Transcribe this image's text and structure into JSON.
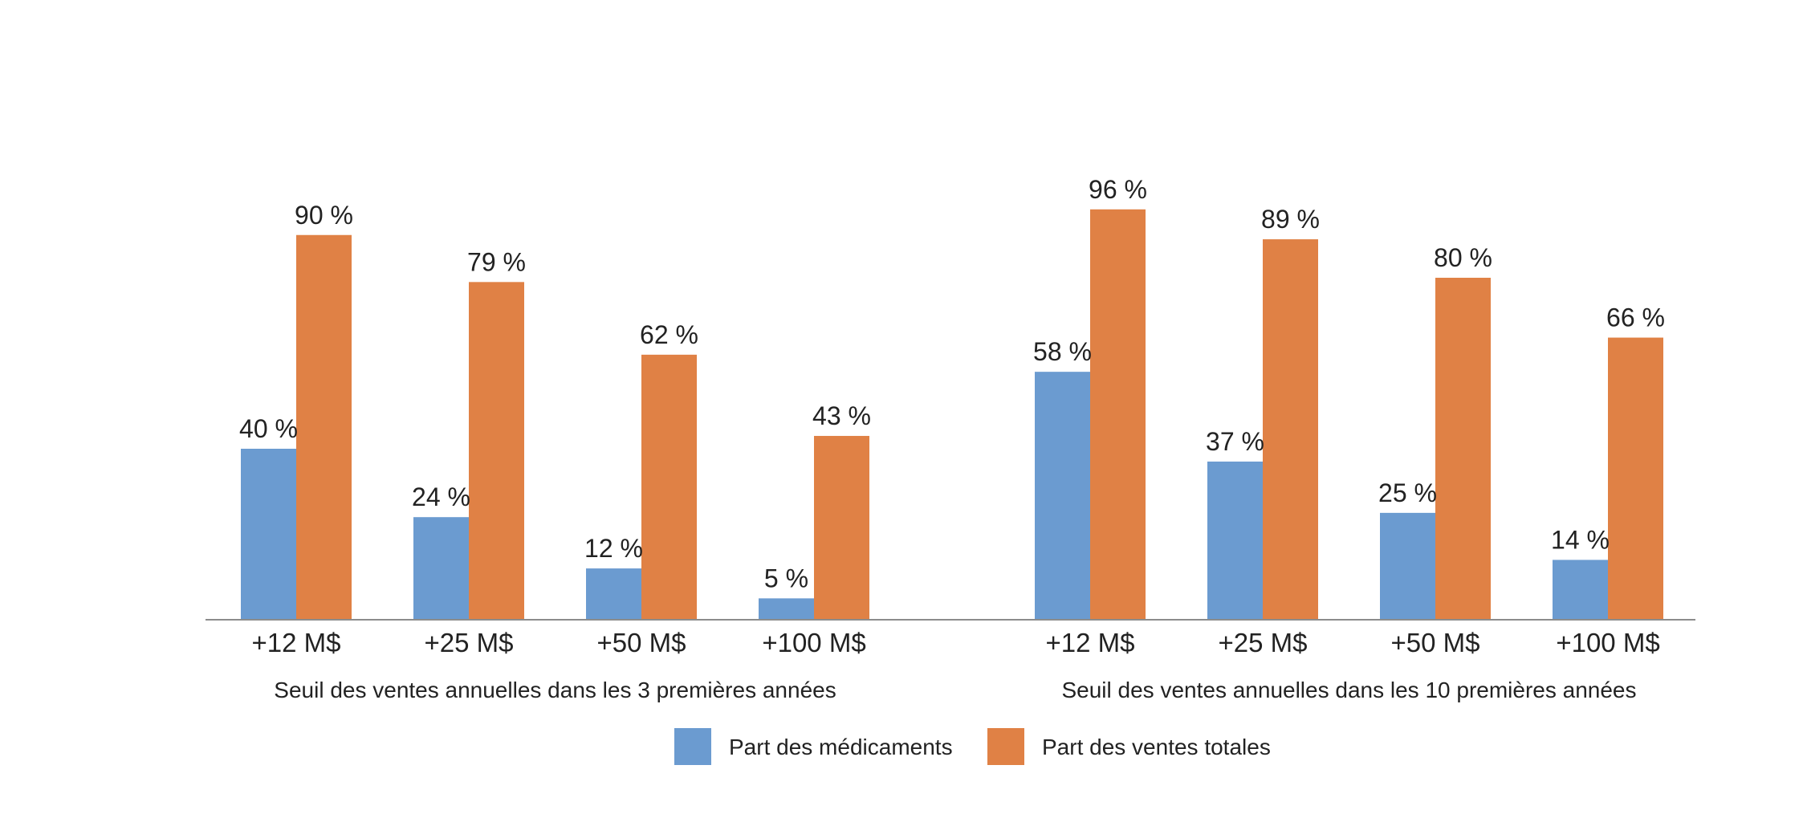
{
  "chart_data": {
    "type": "bar",
    "title": "",
    "xlabel": "",
    "ylabel": "",
    "ylim": [
      0,
      100
    ],
    "grid": false,
    "legend_position": "bottom-center",
    "value_suffix": " %",
    "groups": [
      {
        "label": "Seuil des ventes annuelles dans les 3 premières années",
        "categories": [
          "+12 M$",
          "+25 M$",
          "+50 M$",
          "+100 M$"
        ]
      },
      {
        "label": "Seuil des ventes annuelles dans les 10 premières années",
        "categories": [
          "+12 M$",
          "+25 M$",
          "+50 M$",
          "+100 M$"
        ]
      }
    ],
    "series": [
      {
        "name": "Part des médicaments",
        "color": "#6b9bd0",
        "values": [
          [
            40,
            24,
            12,
            5
          ],
          [
            58,
            37,
            25,
            14
          ]
        ]
      },
      {
        "name": "Part des ventes totales",
        "color": "#e08145",
        "values": [
          [
            90,
            79,
            62,
            43
          ],
          [
            96,
            89,
            80,
            66
          ]
        ]
      }
    ],
    "axis_color": "#8c8c8c"
  }
}
